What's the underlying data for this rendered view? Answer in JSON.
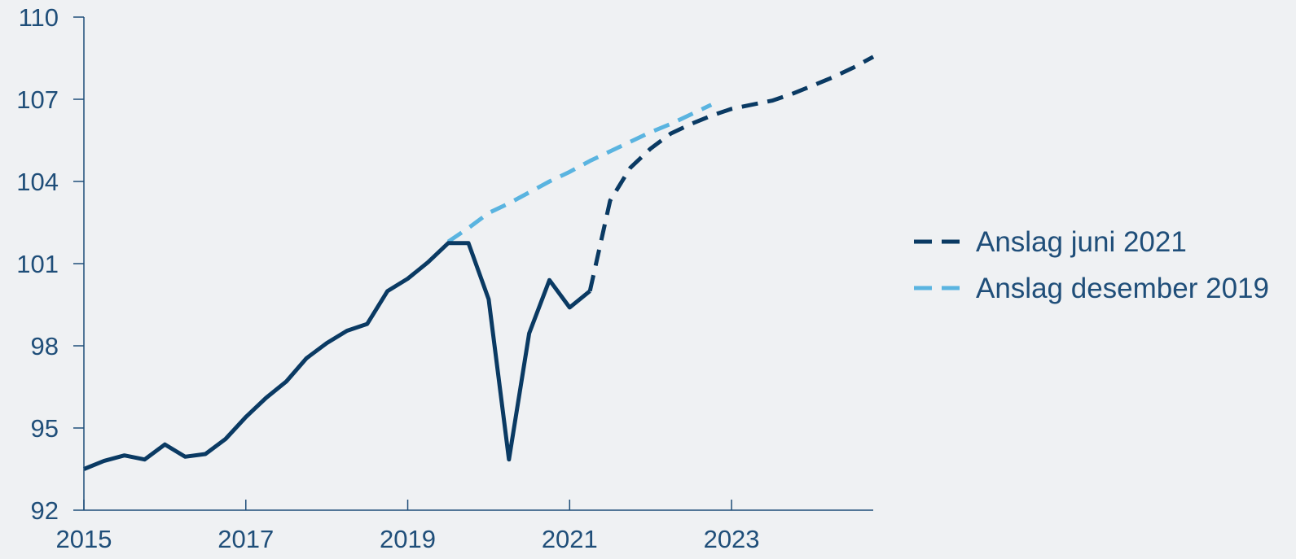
{
  "chart_data": {
    "type": "line",
    "title": "",
    "xlabel": "",
    "ylabel": "",
    "xlim": [
      2015,
      2024.75
    ],
    "ylim": [
      92,
      110
    ],
    "x_ticks": [
      2015,
      2017,
      2019,
      2021,
      2023
    ],
    "x_tick_labels": [
      "2015",
      "2017",
      "2019",
      "2021",
      "2023"
    ],
    "y_ticks": [
      92,
      95,
      98,
      101,
      104,
      107,
      110
    ],
    "y_tick_labels": [
      "92",
      "95",
      "98",
      "101",
      "104",
      "107",
      "110"
    ],
    "grid": false,
    "legend_position": "right",
    "series": [
      {
        "key": "outcome",
        "color": "#0a3a63",
        "style": "solid",
        "points": [
          [
            2015.0,
            93.5
          ],
          [
            2015.25,
            93.8
          ],
          [
            2015.5,
            94.0
          ],
          [
            2015.75,
            93.85
          ],
          [
            2016.0,
            94.4
          ],
          [
            2016.25,
            93.95
          ],
          [
            2016.5,
            94.05
          ],
          [
            2016.75,
            94.6
          ],
          [
            2017.0,
            95.4
          ],
          [
            2017.25,
            96.1
          ],
          [
            2017.5,
            96.7
          ],
          [
            2017.75,
            97.55
          ],
          [
            2018.0,
            98.1
          ],
          [
            2018.25,
            98.55
          ],
          [
            2018.5,
            98.8
          ],
          [
            2018.75,
            100.0
          ],
          [
            2019.0,
            100.45
          ],
          [
            2019.25,
            101.05
          ],
          [
            2019.5,
            101.75
          ],
          [
            2019.75,
            101.75
          ],
          [
            2020.0,
            99.7
          ],
          [
            2020.25,
            93.85
          ],
          [
            2020.5,
            98.45
          ],
          [
            2020.75,
            100.4
          ],
          [
            2021.0,
            99.4
          ],
          [
            2021.25,
            100.0
          ]
        ]
      },
      {
        "key": "june2021",
        "name": "Anslag juni 2021",
        "color": "#0a3a63",
        "style": "dashed",
        "points": [
          [
            2021.25,
            100.0
          ],
          [
            2021.5,
            103.3
          ],
          [
            2021.75,
            104.5
          ],
          [
            2022.0,
            105.2
          ],
          [
            2022.25,
            105.75
          ],
          [
            2022.5,
            106.1
          ],
          [
            2022.75,
            106.4
          ],
          [
            2023.0,
            106.65
          ],
          [
            2023.25,
            106.8
          ],
          [
            2023.5,
            106.95
          ],
          [
            2023.75,
            107.2
          ],
          [
            2024.0,
            107.5
          ],
          [
            2024.25,
            107.8
          ],
          [
            2024.5,
            108.15
          ],
          [
            2024.75,
            108.55
          ]
        ]
      },
      {
        "key": "dec2019",
        "name": "Anslag desember 2019",
        "color": "#5ab4e0",
        "style": "dashed",
        "points": [
          [
            2019.5,
            101.8
          ],
          [
            2019.75,
            102.3
          ],
          [
            2020.0,
            102.85
          ],
          [
            2020.25,
            103.2
          ],
          [
            2020.5,
            103.6
          ],
          [
            2020.75,
            104.0
          ],
          [
            2021.0,
            104.35
          ],
          [
            2021.25,
            104.75
          ],
          [
            2021.5,
            105.1
          ],
          [
            2021.75,
            105.45
          ],
          [
            2022.0,
            105.8
          ],
          [
            2022.25,
            106.1
          ],
          [
            2022.5,
            106.45
          ],
          [
            2022.75,
            106.8
          ]
        ]
      }
    ],
    "legend": [
      {
        "label": "Anslag juni 2021",
        "color": "#0a3a63"
      },
      {
        "label": "Anslag desember 2019",
        "color": "#5ab4e0"
      }
    ]
  },
  "colors": {
    "background": "#eff1f3",
    "axis": "#1f4e79",
    "text": "#1f4e79"
  }
}
